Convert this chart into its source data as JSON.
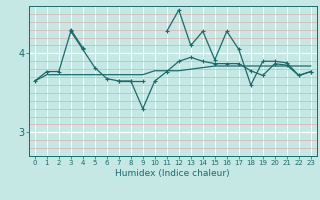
{
  "xlabel": "Humidex (Indice chaleur)",
  "bg_color": "#c5e8e5",
  "line_color": "#1a6b6b",
  "grid_white": "#ffffff",
  "grid_red": "#e8a8a8",
  "xlim": [
    -0.5,
    23.5
  ],
  "ylim": [
    2.7,
    4.6
  ],
  "yticks": [
    3,
    4
  ],
  "xticks": [
    0,
    1,
    2,
    3,
    4,
    5,
    6,
    7,
    8,
    9,
    10,
    11,
    12,
    13,
    14,
    15,
    16,
    17,
    18,
    19,
    20,
    21,
    22,
    23
  ],
  "line1_x": [
    0,
    1,
    2,
    3,
    4,
    5,
    6,
    7,
    8,
    9,
    10,
    11,
    12,
    13,
    14,
    15,
    16,
    17,
    18,
    19,
    20,
    21,
    22,
    23
  ],
  "line1_y": [
    3.65,
    3.73,
    3.73,
    3.73,
    3.73,
    3.73,
    3.73,
    3.73,
    3.73,
    3.73,
    3.78,
    3.78,
    3.78,
    3.8,
    3.82,
    3.84,
    3.84,
    3.84,
    3.84,
    3.84,
    3.84,
    3.84,
    3.84,
    3.84
  ],
  "line2_x": [
    0,
    1,
    2,
    3,
    4,
    5,
    6,
    7,
    8,
    9,
    10,
    11,
    12,
    13,
    14,
    15,
    16,
    17,
    18,
    19,
    20,
    21,
    22,
    23
  ],
  "line2_y": [
    3.65,
    3.77,
    3.77,
    4.28,
    4.05,
    3.82,
    3.68,
    3.65,
    3.65,
    3.3,
    3.65,
    3.77,
    3.9,
    3.95,
    3.9,
    3.87,
    3.87,
    3.87,
    3.78,
    3.72,
    3.87,
    3.85,
    3.72,
    3.77
  ],
  "line3_segments": [
    {
      "x": [
        3,
        4
      ],
      "y": [
        4.3,
        4.07
      ]
    },
    {
      "x": [
        7,
        8,
        9
      ],
      "y": [
        3.65,
        3.65,
        3.65
      ]
    },
    {
      "x": [
        11,
        12,
        13,
        14,
        15,
        16,
        17,
        18,
        19,
        20,
        21,
        22,
        23
      ],
      "y": [
        4.28,
        4.55,
        4.1,
        4.28,
        3.92,
        4.28,
        4.05,
        3.6,
        3.9,
        3.9,
        3.88,
        3.72,
        3.77
      ]
    }
  ]
}
